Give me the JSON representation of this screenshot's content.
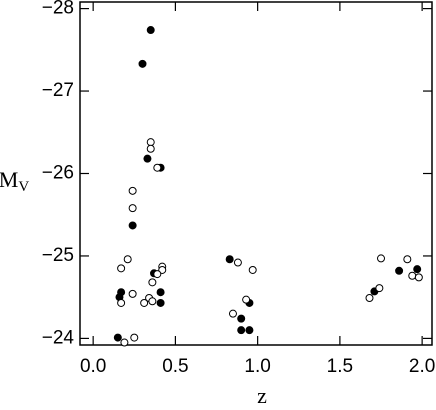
{
  "chart_data": {
    "type": "scatter",
    "xlabel": "z",
    "ylabel": "M",
    "ylabel_subscript": "V",
    "xlim": [
      -0.08,
      2.06
    ],
    "ylim": [
      -23.92,
      -28.08
    ],
    "xticks": [
      {
        "value": 0,
        "label": "0.0"
      },
      {
        "value": 0.5,
        "label": "0.5"
      },
      {
        "value": 1,
        "label": "1.0"
      },
      {
        "value": 1.5,
        "label": "1.5"
      },
      {
        "value": 2,
        "label": "2.0"
      }
    ],
    "yticks": [
      {
        "value": -24,
        "label": "−24"
      },
      {
        "value": -25,
        "label": "−25"
      },
      {
        "value": -26,
        "label": "−26"
      },
      {
        "value": -27,
        "label": "−27"
      },
      {
        "value": -28,
        "label": "−28"
      }
    ],
    "series": [
      {
        "filled": true,
        "color": "#000000",
        "x": [
          0.35,
          0.3,
          0.33,
          0.41,
          0.24,
          0.37,
          0.41,
          0.41,
          0.17,
          0.16,
          0.15,
          0.83,
          0.9,
          0.9,
          0.95,
          0.95,
          1.71,
          1.86,
          1.97
        ],
        "values": [
          -27.74,
          -27.33,
          -26.18,
          -26.07,
          -25.37,
          -24.79,
          -24.56,
          -24.43,
          -24.56,
          -24.5,
          -24.01,
          -24.96,
          -24.24,
          -24.1,
          -24.1,
          -24.43,
          -24.57,
          -24.82,
          -24.84
        ]
      },
      {
        "filled": false,
        "color": "#000000",
        "x": [
          0.35,
          0.35,
          0.39,
          0.24,
          0.24,
          0.21,
          0.17,
          0.42,
          0.42,
          0.39,
          0.36,
          0.34,
          0.36,
          0.31,
          0.17,
          0.24,
          0.25,
          0.19,
          0.88,
          0.97,
          0.93,
          0.85,
          1.75,
          1.74,
          1.68,
          1.91,
          1.94,
          1.98
        ],
        "values": [
          -26.38,
          -26.3,
          -26.07,
          -25.79,
          -25.58,
          -24.96,
          -24.85,
          -24.87,
          -24.83,
          -24.78,
          -24.68,
          -24.49,
          -24.45,
          -24.43,
          -24.43,
          -24.54,
          -24.01,
          -23.95,
          -24.92,
          -24.83,
          -24.47,
          -24.3,
          -24.97,
          -24.61,
          -24.49,
          -24.96,
          -24.76,
          -24.74
        ]
      }
    ]
  }
}
